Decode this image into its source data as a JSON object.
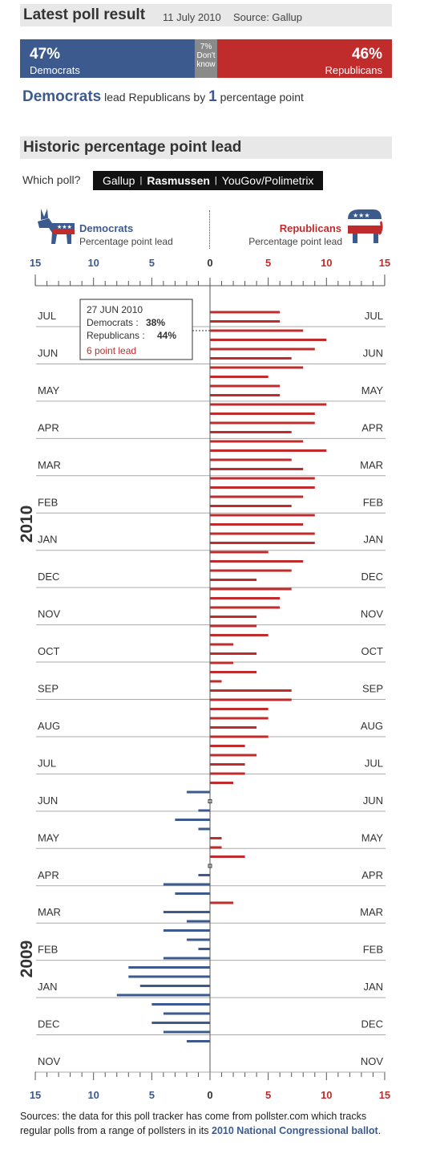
{
  "header": {
    "title": "Latest poll result",
    "date": "11 July 2010",
    "source": "Source: Gallup"
  },
  "latest": {
    "dem_pct": "47%",
    "dem_label": "Democrats",
    "dk_pct": "7%",
    "dk_label_1": "Don't",
    "dk_label_2": "know",
    "rep_pct": "46%",
    "rep_label": "Republicans",
    "dem_value": 47,
    "dk_value": 7,
    "rep_value": 46
  },
  "lead_line": {
    "party": "Democrats",
    "text_1": "lead Republicans by",
    "points": "1",
    "text_2": "percentage point"
  },
  "historic": {
    "title": "Historic percentage point lead",
    "which_poll": "Which poll?",
    "polls": [
      "Gallup",
      "Rasmussen",
      "YouGov/Polimetrix"
    ],
    "selected_poll": "Rasmussen"
  },
  "legend": {
    "dem_title": "Democrats",
    "dem_sub": "Percentage point lead",
    "rep_title": "Republicans",
    "rep_sub": "Percentage point lead"
  },
  "tooltip": {
    "date": "27 JUN 2010",
    "dem_label": "Democrats :",
    "dem_value": "38%",
    "rep_label": "Republicans :",
    "rep_value": "44%",
    "lead": "6 point lead"
  },
  "footer": {
    "text": "Sources: the data for this poll tracker has come from pollster.com which tracks regular polls from a range of pollsters in its",
    "link": "2010 National Congressional ballot",
    "end": "."
  },
  "colors": {
    "democrat": "#3d5a8e",
    "republican": "#c02b2b",
    "dont_know": "#8a8a8a"
  },
  "chart_data": {
    "type": "bar",
    "orientation": "horizontal",
    "x_ticks": [
      15,
      10,
      5,
      0,
      5,
      10,
      15
    ],
    "xlim": [
      -15,
      15
    ],
    "note": "Negative values = Democrat lead, positive values = Republican lead (percentage points). Ordered newest (top) to oldest (bottom).",
    "months": [
      "JUL",
      "JUN",
      "MAY",
      "APR",
      "MAR",
      "FEB",
      "JAN",
      "DEC",
      "NOV",
      "OCT",
      "SEP",
      "AUG",
      "JUL",
      "JUN",
      "MAY",
      "APR",
      "MAR",
      "FEB",
      "JAN",
      "DEC",
      "NOV"
    ],
    "years": [
      "2010",
      "2009"
    ],
    "values": [
      6,
      6,
      8,
      10,
      9,
      7,
      8,
      5,
      6,
      6,
      10,
      9,
      9,
      7,
      8,
      10,
      7,
      8,
      9,
      9,
      8,
      7,
      9,
      8,
      9,
      9,
      5,
      8,
      7,
      4,
      7,
      6,
      6,
      4,
      4,
      5,
      2,
      4,
      2,
      4,
      1,
      7,
      7,
      5,
      5,
      4,
      5,
      3,
      4,
      3,
      3,
      2,
      -2,
      0,
      -1,
      -3,
      -1,
      1,
      1,
      3,
      0,
      -1,
      -4,
      -3,
      2,
      -4,
      -2,
      -4,
      -2,
      -1,
      -4,
      -7,
      -7,
      -6,
      -8,
      -5,
      -4,
      -5,
      -4,
      -2
    ]
  }
}
